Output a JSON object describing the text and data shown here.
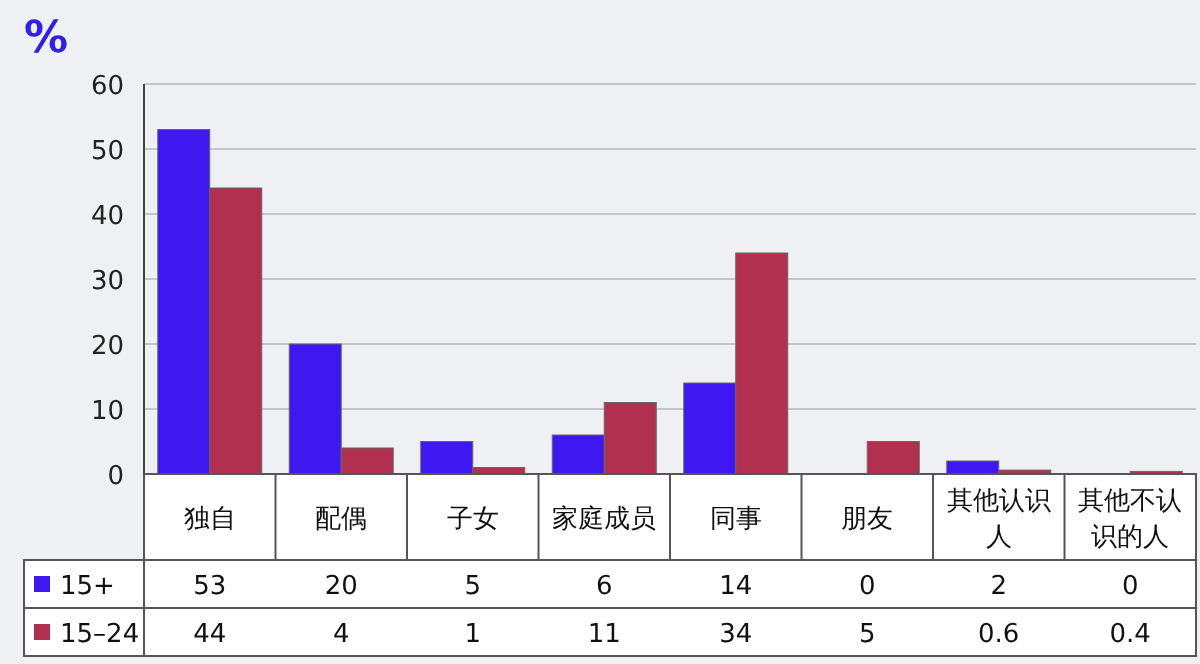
{
  "chart_data": {
    "type": "bar",
    "ylabel": "%",
    "categories": [
      "独自",
      "配偶",
      "子女",
      "家庭成员",
      "同事",
      "朋友",
      "其他认识人",
      "其他不认识的人"
    ],
    "series": [
      {
        "name": "15+",
        "color": "#3f17f0",
        "values": [
          53,
          20,
          5,
          6,
          14,
          0,
          2,
          0
        ]
      },
      {
        "name": "15–24",
        "color": "#b1304f",
        "values": [
          44,
          4,
          1,
          11,
          34,
          5,
          0.6,
          0.4
        ]
      }
    ],
    "ylim": [
      0,
      60
    ],
    "yticks": [
      0,
      10,
      20,
      30,
      40,
      50,
      60
    ],
    "grid": "y",
    "data_labels": true,
    "legend": "bottom"
  }
}
